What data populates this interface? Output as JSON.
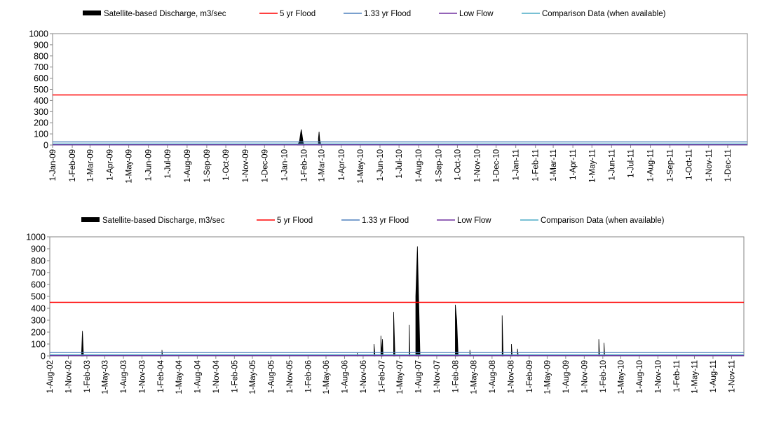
{
  "legend_labels": {
    "discharge": "Satellite-based Discharge, m3/sec",
    "flood5": "5 yr Flood",
    "flood133": "1.33 yr Flood",
    "lowflow": "Low Flow",
    "comparison": "Comparison Data (when available)"
  },
  "colors": {
    "discharge": "#000000",
    "flood5": "#ff0000",
    "flood133": "#4f81bd",
    "lowflow": "#7030a0",
    "comparison": "#4bacc6",
    "axis": "#868686"
  },
  "chart_data": [
    {
      "type": "area",
      "ylim": [
        0,
        1000
      ],
      "yticks": [
        0,
        100,
        200,
        300,
        400,
        500,
        600,
        700,
        800,
        900,
        1000
      ],
      "grid": false,
      "legend_position": "top",
      "x_start": "2009-01-01",
      "x_end": "2012-01-01",
      "xticks": [
        "1-Jan-09",
        "1-Feb-09",
        "1-Mar-09",
        "1-Apr-09",
        "1-May-09",
        "1-Jun-09",
        "1-Jul-09",
        "1-Aug-09",
        "1-Sep-09",
        "1-Oct-09",
        "1-Nov-09",
        "1-Dec-09",
        "1-Jan-10",
        "1-Feb-10",
        "1-Mar-10",
        "1-Apr-10",
        "1-May-10",
        "1-Jun-10",
        "1-Jul-10",
        "1-Aug-10",
        "1-Sep-10",
        "1-Oct-10",
        "1-Nov-10",
        "1-Dec-10",
        "1-Jan-11",
        "1-Feb-11",
        "1-Mar-11",
        "1-Apr-11",
        "1-May-11",
        "1-Jun-11",
        "1-Jul-11",
        "1-Aug-11",
        "1-Sep-11",
        "1-Oct-11",
        "1-Nov-11",
        "1-Dec-11"
      ],
      "series": [
        {
          "name": "Satellite-based Discharge, m3/sec",
          "kind": "area",
          "points": [
            [
              "2010-01-22",
              0
            ],
            [
              "2010-01-25",
              30
            ],
            [
              "2010-01-27",
              110
            ],
            [
              "2010-01-28",
              140
            ],
            [
              "2010-01-29",
              100
            ],
            [
              "2010-01-31",
              20
            ],
            [
              "2010-02-02",
              0
            ],
            [
              "2010-02-23",
              0
            ],
            [
              "2010-02-24",
              60
            ],
            [
              "2010-02-25",
              120
            ],
            [
              "2010-02-26",
              50
            ],
            [
              "2010-02-28",
              0
            ]
          ]
        },
        {
          "name": "5 yr Flood",
          "kind": "hline",
          "value": 450
        },
        {
          "name": "1.33 yr Flood",
          "kind": "hline",
          "value": 28
        },
        {
          "name": "Low Flow",
          "kind": "hline",
          "value": 2
        },
        {
          "name": "Comparison Data (when available)",
          "kind": "hline",
          "value": 10
        }
      ]
    },
    {
      "type": "area",
      "ylim": [
        0,
        1000
      ],
      "yticks": [
        0,
        100,
        200,
        300,
        400,
        500,
        600,
        700,
        800,
        900,
        1000
      ],
      "grid": false,
      "legend_position": "top",
      "x_start": "2002-08-01",
      "x_end": "2012-01-01",
      "xticks": [
        "1-Aug-02",
        "1-Nov-02",
        "1-Feb-03",
        "1-May-03",
        "1-Aug-03",
        "1-Nov-03",
        "1-Feb-04",
        "1-May-04",
        "1-Aug-04",
        "1-Nov-04",
        "1-Feb-05",
        "1-May-05",
        "1-Aug-05",
        "1-Nov-05",
        "1-Feb-06",
        "1-May-06",
        "1-Aug-06",
        "1-Nov-06",
        "1-Feb-07",
        "1-May-07",
        "1-Aug-07",
        "1-Nov-07",
        "1-Feb-08",
        "1-May-08",
        "1-Aug-08",
        "1-Nov-08",
        "1-Feb-09",
        "1-May-09",
        "1-Aug-09",
        "1-Nov-09",
        "1-Feb-10",
        "1-May-10",
        "1-Aug-10",
        "1-Nov-10",
        "1-Feb-11",
        "1-May-11",
        "1-Aug-11",
        "1-Nov-11"
      ],
      "series": [
        {
          "name": "Satellite-based Discharge, m3/sec",
          "kind": "area",
          "points": [
            [
              "2003-01-05",
              0
            ],
            [
              "2003-01-10",
              210
            ],
            [
              "2003-01-15",
              0
            ],
            [
              "2004-02-05",
              0
            ],
            [
              "2004-02-08",
              50
            ],
            [
              "2004-02-11",
              0
            ],
            [
              "2006-10-01",
              0
            ],
            [
              "2006-10-03",
              25
            ],
            [
              "2006-10-05",
              0
            ],
            [
              "2006-12-20",
              0
            ],
            [
              "2006-12-25",
              100
            ],
            [
              "2006-12-30",
              0
            ],
            [
              "2007-01-25",
              0
            ],
            [
              "2007-01-28",
              170
            ],
            [
              "2007-02-01",
              20
            ],
            [
              "2007-02-05",
              140
            ],
            [
              "2007-02-08",
              0
            ],
            [
              "2007-03-22",
              0
            ],
            [
              "2007-04-01",
              370
            ],
            [
              "2007-04-08",
              0
            ],
            [
              "2007-06-15",
              0
            ],
            [
              "2007-06-18",
              260
            ],
            [
              "2007-06-21",
              0
            ],
            [
              "2007-07-10",
              0
            ],
            [
              "2007-07-20",
              500
            ],
            [
              "2007-07-28",
              920
            ],
            [
              "2007-08-03",
              500
            ],
            [
              "2007-08-10",
              0
            ],
            [
              "2008-01-25",
              0
            ],
            [
              "2008-02-01",
              430
            ],
            [
              "2008-02-08",
              300
            ],
            [
              "2008-02-15",
              0
            ],
            [
              "2008-04-10",
              0
            ],
            [
              "2008-04-13",
              50
            ],
            [
              "2008-04-16",
              0
            ],
            [
              "2008-09-15",
              0
            ],
            [
              "2008-09-20",
              340
            ],
            [
              "2008-09-25",
              0
            ],
            [
              "2008-11-01",
              0
            ],
            [
              "2008-11-05",
              100
            ],
            [
              "2008-11-09",
              0
            ],
            [
              "2008-12-01",
              0
            ],
            [
              "2008-12-05",
              60
            ],
            [
              "2008-12-09",
              0
            ],
            [
              "2010-01-08",
              0
            ],
            [
              "2010-01-12",
              140
            ],
            [
              "2010-01-16",
              0
            ],
            [
              "2010-02-04",
              0
            ],
            [
              "2010-02-07",
              110
            ],
            [
              "2010-02-10",
              0
            ]
          ]
        },
        {
          "name": "5 yr Flood",
          "kind": "hline",
          "value": 450
        },
        {
          "name": "1.33 yr Flood",
          "kind": "hline",
          "value": 28
        },
        {
          "name": "Low Flow",
          "kind": "hline",
          "value": 2
        },
        {
          "name": "Comparison Data (when available)",
          "kind": "hline",
          "value": 10
        }
      ]
    }
  ]
}
